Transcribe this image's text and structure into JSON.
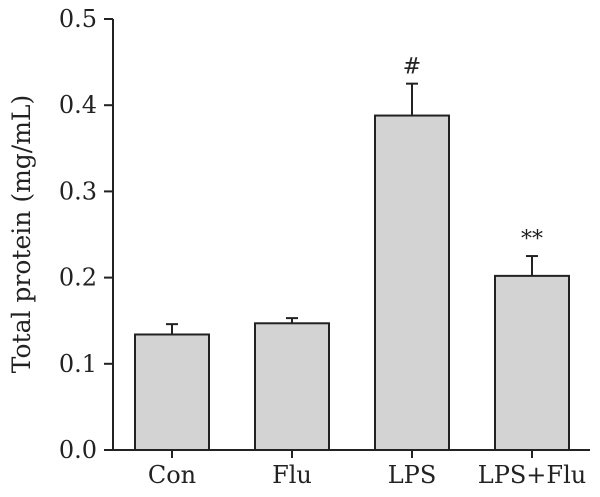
{
  "chart_data": {
    "type": "bar",
    "title": "",
    "xlabel": "",
    "ylabel": "Total protein (mg/mL)",
    "ylim": [
      0,
      0.5
    ],
    "yticks": [
      "0.0",
      "0.1",
      "0.2",
      "0.3",
      "0.4",
      "0.5"
    ],
    "categories": [
      "Con",
      "Flu",
      "LPS",
      "LPS+Flu"
    ],
    "values": [
      0.134,
      0.147,
      0.388,
      0.202
    ],
    "errors": [
      0.012,
      0.006,
      0.037,
      0.023
    ],
    "annotations": [
      "",
      "",
      "#",
      "**"
    ],
    "bar_color": "#d3d3d3",
    "grid": false,
    "legend": "none"
  }
}
